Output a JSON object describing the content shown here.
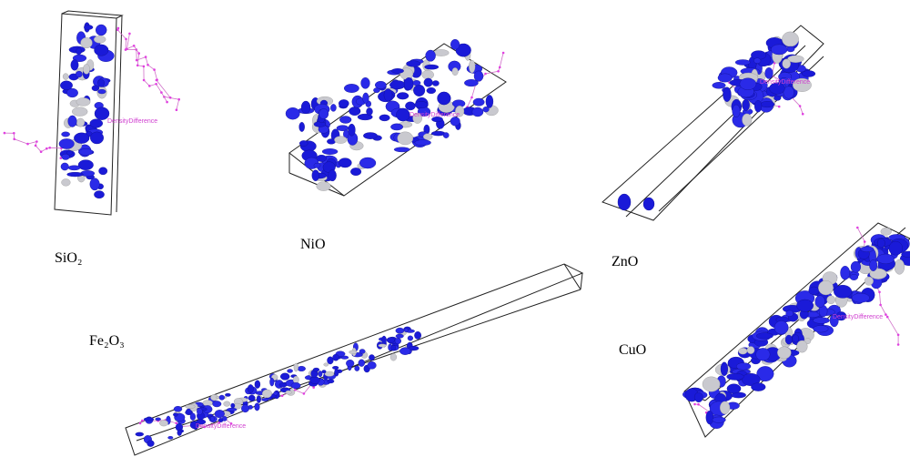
{
  "panels": [
    {
      "label": "SiO₂",
      "annotation": "DensityDifference"
    },
    {
      "label": "NiO",
      "annotation": "DensityDifference"
    },
    {
      "label": "ZnO",
      "annotation": "DensityDifference"
    },
    {
      "label": "Fe₂O₃",
      "annotation": "DensityDifference"
    },
    {
      "label": "CuO",
      "annotation": "DensityDifference"
    }
  ]
}
